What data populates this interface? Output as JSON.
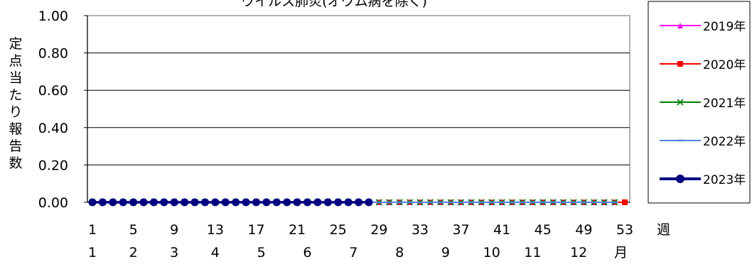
{
  "chart_data": {
    "type": "line",
    "title": "ウイルス肺炎(オウム病を除く)",
    "ylabel": "定点当たり報告数",
    "x_unit": "週",
    "month_unit": "月",
    "ylim": [
      0,
      1.0
    ],
    "xlim": [
      1,
      53
    ],
    "yticks": [
      "0.00",
      "0.20",
      "0.40",
      "0.60",
      "0.80",
      "1.00"
    ],
    "xticks": [
      1,
      5,
      9,
      13,
      17,
      21,
      25,
      29,
      33,
      37,
      41,
      45,
      49,
      53
    ],
    "months": [
      {
        "label": "1",
        "week": 1
      },
      {
        "label": "2",
        "week": 5
      },
      {
        "label": "3",
        "week": 9
      },
      {
        "label": "4",
        "week": 13
      },
      {
        "label": "5",
        "week": 17.5
      },
      {
        "label": "6",
        "week": 22
      },
      {
        "label": "7",
        "week": 26.5
      },
      {
        "label": "8",
        "week": 31
      },
      {
        "label": "9",
        "week": 35.5
      },
      {
        "label": "10",
        "week": 40
      },
      {
        "label": "11",
        "week": 44
      },
      {
        "label": "12",
        "week": 48.5
      }
    ],
    "grid": true,
    "legend_position": "right",
    "series": [
      {
        "name": "2019年",
        "color": "#ff00ff",
        "marker": "triangle",
        "weeks": [
          1,
          52
        ],
        "value": 0
      },
      {
        "name": "2020年",
        "color": "#ff0000",
        "marker": "square",
        "weeks": [
          1,
          53
        ],
        "value": 0
      },
      {
        "name": "2021年",
        "color": "#008000",
        "marker": "x",
        "weeks": [
          1,
          52
        ],
        "value": 0
      },
      {
        "name": "2022年",
        "color": "#4f81f5",
        "marker": "dash",
        "weeks": [
          1,
          52
        ],
        "value": 0
      },
      {
        "name": "2023年",
        "color": "#000080",
        "marker": "circle",
        "weeks": [
          1,
          28
        ],
        "value": 0
      }
    ]
  }
}
